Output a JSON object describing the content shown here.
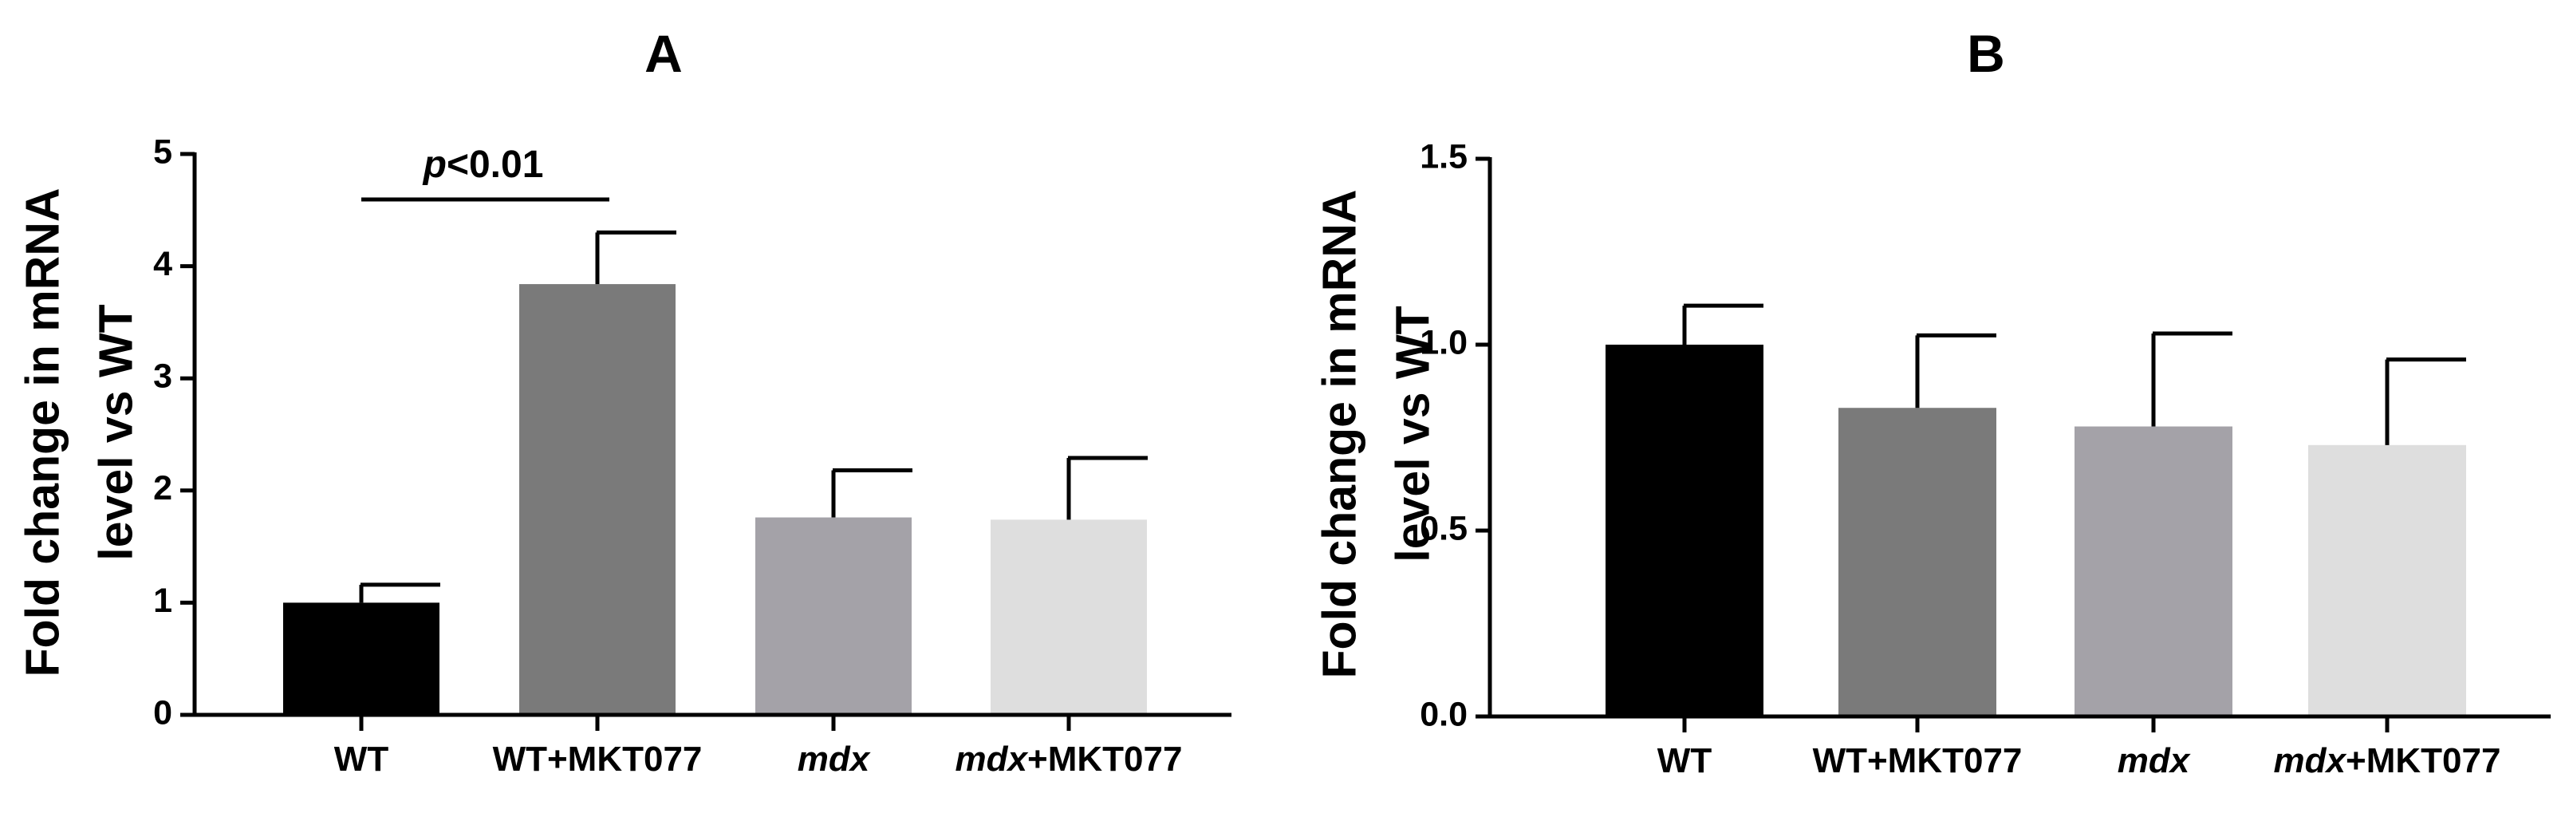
{
  "chart_data": [
    {
      "type": "bar",
      "title": "A",
      "ylabel_lines": [
        "Fold change in mRNA",
        "level vs WT"
      ],
      "ylim": [
        0,
        5
      ],
      "yticks": [
        "0",
        "1",
        "2",
        "3",
        "4",
        "5"
      ],
      "categories": [
        {
          "label": "WT",
          "italic_part": "",
          "rest": "WT"
        },
        {
          "label": "WT+MKT077",
          "italic_part": "",
          "rest": "WT+MKT077"
        },
        {
          "label": "mdx",
          "italic_part": "mdx",
          "rest": ""
        },
        {
          "label": "mdx+MKT077",
          "italic_part": "mdx",
          "rest": "+MKT077"
        }
      ],
      "values": [
        1.0,
        3.84,
        1.76,
        1.74
      ],
      "errors": [
        0.16,
        0.46,
        0.42,
        0.55
      ],
      "colors": [
        "#000000",
        "#7a7a7a",
        "#a4a2a8",
        "#dedede"
      ],
      "annotation": {
        "italic_part": "p",
        "rest": "<0.01",
        "text": "p<0.01",
        "from": 0,
        "to": 1
      }
    },
    {
      "type": "bar",
      "title": "B",
      "ylabel_lines": [
        "Fold change in mRNA",
        "level vs WT"
      ],
      "ylim": [
        0,
        1.5
      ],
      "yticks": [
        "0.0",
        "0.5",
        "1.0",
        "1.5"
      ],
      "categories": [
        {
          "label": "WT",
          "italic_part": "",
          "rest": "WT"
        },
        {
          "label": "WT+MKT077",
          "italic_part": "",
          "rest": "WT+MKT077"
        },
        {
          "label": "mdx",
          "italic_part": "mdx",
          "rest": ""
        },
        {
          "label": "mdx+MKT077",
          "italic_part": "mdx",
          "rest": "+MKT077"
        }
      ],
      "values": [
        1.0,
        0.83,
        0.78,
        0.73
      ],
      "errors": [
        0.105,
        0.195,
        0.25,
        0.23
      ],
      "colors": [
        "#000000",
        "#7a7a7a",
        "#a4a2a8",
        "#dedede"
      ]
    }
  ]
}
